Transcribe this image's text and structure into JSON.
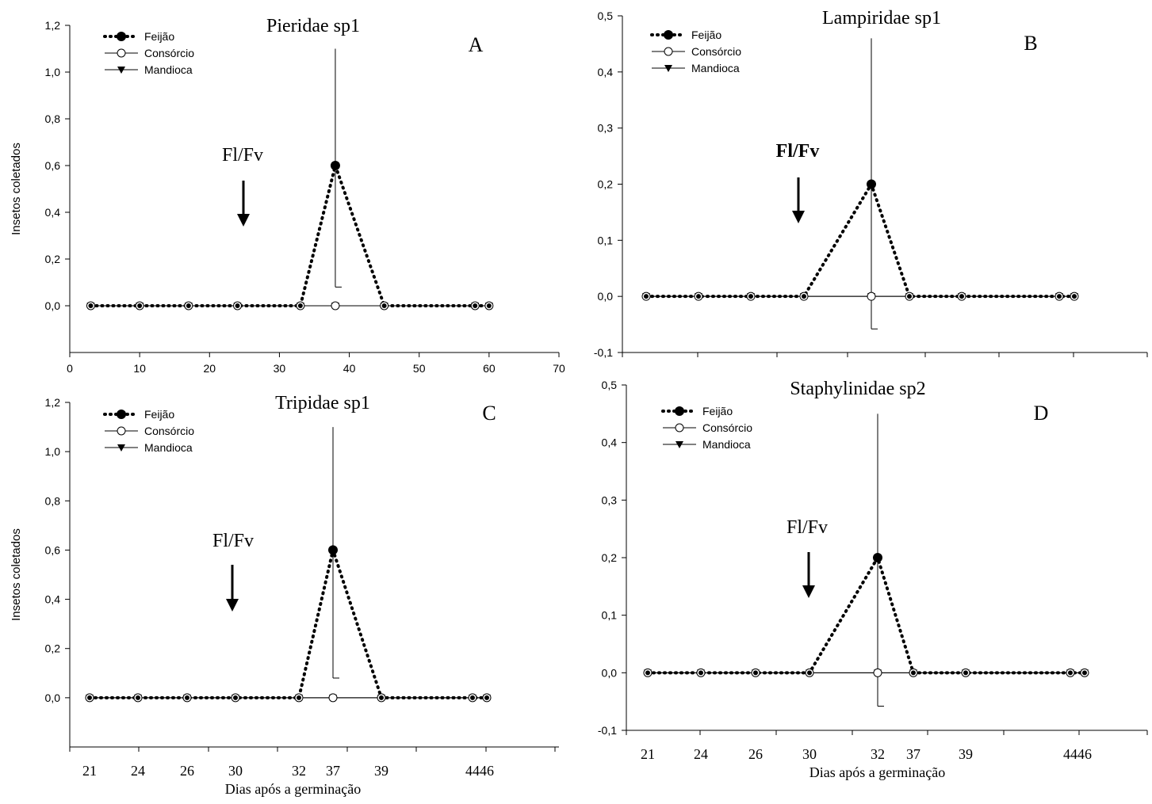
{
  "chart_data": [
    {
      "panel": "A",
      "type": "line",
      "title": "Pieridae sp1",
      "ylabel": "Insetos coletados",
      "xlabel": "",
      "x_scale": "linear",
      "xlim": [
        0,
        70
      ],
      "ylim": [
        -0.2,
        1.2
      ],
      "x_ticks": [
        0,
        10,
        20,
        30,
        40,
        50,
        60,
        70
      ],
      "x_tick_labels": [
        "0",
        "10",
        "20",
        "30",
        "40",
        "50",
        "60",
        "70"
      ],
      "y_ticks": [
        0.0,
        0.2,
        0.4,
        0.6,
        0.8,
        1.0,
        1.2
      ],
      "y_tick_labels": [
        "0,0",
        "0,2",
        "0,4",
        "0,6",
        "0,8",
        "1,0",
        "1,2"
      ],
      "x": [
        3,
        10,
        17,
        24,
        33,
        38,
        45,
        58,
        60
      ],
      "series": [
        {
          "name": "Feijão",
          "values": [
            0,
            0,
            0,
            0,
            0,
            0.6,
            0,
            0,
            0
          ],
          "style": "dotted",
          "marker": "filled-circle"
        },
        {
          "name": "Consórcio",
          "values": [
            0,
            0,
            0,
            0,
            0,
            0,
            0,
            0,
            0
          ],
          "style": "solid",
          "marker": "open-circle"
        },
        {
          "name": "Mandioca",
          "values": [
            0,
            0,
            0,
            0,
            0,
            0,
            0,
            0,
            0
          ],
          "style": "solid",
          "marker": "filled-triangle-down"
        }
      ],
      "error_bar": {
        "x": 38,
        "low": 0.08,
        "high": 1.1
      },
      "annotation": {
        "text": "Fl/Fv",
        "x": 25,
        "bold": false
      },
      "legend_position": "top-left"
    },
    {
      "panel": "B",
      "type": "line",
      "title": "Lampiridae sp1",
      "ylabel": "",
      "xlabel": "",
      "x_scale": "category",
      "categories": [
        "21",
        "24",
        "26",
        "30",
        "32",
        "37",
        "39",
        "44",
        "46"
      ],
      "ylim": [
        -0.1,
        0.5
      ],
      "y_ticks": [
        -0.1,
        0.0,
        0.1,
        0.2,
        0.3,
        0.4,
        0.5
      ],
      "y_tick_labels": [
        "-0,1",
        "0,0",
        "0,1",
        "0,2",
        "0,3",
        "0,4",
        "0,5"
      ],
      "series": [
        {
          "name": "Feijão",
          "values": [
            0,
            0,
            0,
            0,
            0.2,
            0,
            0,
            0,
            0
          ],
          "style": "dotted",
          "marker": "filled-circle"
        },
        {
          "name": "Consórcio",
          "values": [
            0,
            0,
            0,
            0,
            0,
            0,
            0,
            0,
            0
          ],
          "style": "solid",
          "marker": "open-circle"
        },
        {
          "name": "Mandioca",
          "values": [
            0,
            0,
            0,
            0,
            0,
            0,
            0,
            0,
            0
          ],
          "style": "solid",
          "marker": "filled-triangle-down"
        }
      ],
      "error_bar": {
        "category": "32",
        "low": -0.058,
        "high": 0.46
      },
      "annotation": {
        "text": "Fl/Fv",
        "bold": true
      },
      "legend_position": "top-left"
    },
    {
      "panel": "C",
      "type": "line",
      "title": "Tripidae sp1",
      "ylabel": "Insetos coletados",
      "xlabel": "Dias após a germinação",
      "x_scale": "category",
      "categories": [
        "21",
        "24",
        "26",
        "30",
        "32",
        "37",
        "39",
        "44",
        "46"
      ],
      "ylim": [
        -0.2,
        1.2
      ],
      "y_ticks": [
        0.0,
        0.2,
        0.4,
        0.6,
        0.8,
        1.0,
        1.2
      ],
      "y_tick_labels": [
        "0,0",
        "0,2",
        "0,4",
        "0,6",
        "0,8",
        "1,0",
        "1,2"
      ],
      "series": [
        {
          "name": "Feijão",
          "values": [
            0,
            0,
            0,
            0,
            0,
            0.6,
            0,
            0,
            0
          ],
          "style": "dotted",
          "marker": "filled-circle"
        },
        {
          "name": "Consórcio",
          "values": [
            0,
            0,
            0,
            0,
            0,
            0,
            0,
            0,
            0
          ],
          "style": "solid",
          "marker": "open-circle"
        },
        {
          "name": "Mandioca",
          "values": [
            0,
            0,
            0,
            0,
            0,
            0,
            0,
            0,
            0
          ],
          "style": "solid",
          "marker": "filled-triangle-down"
        }
      ],
      "error_bar": {
        "category": "37",
        "low": 0.08,
        "high": 1.1
      },
      "annotation": {
        "text": "Fl/Fv",
        "bold": false
      },
      "legend_position": "top-left"
    },
    {
      "panel": "D",
      "type": "line",
      "title": "Staphylinidae sp2",
      "ylabel": "",
      "xlabel": "Dias após a germinação",
      "x_scale": "category",
      "categories": [
        "21",
        "24",
        "26",
        "30",
        "32",
        "37",
        "39",
        "44",
        "46"
      ],
      "ylim": [
        -0.1,
        0.5
      ],
      "y_ticks": [
        -0.1,
        0.0,
        0.1,
        0.2,
        0.3,
        0.4,
        0.5
      ],
      "y_tick_labels": [
        "-0,1",
        "0,0",
        "0,1",
        "0,2",
        "0,3",
        "0,4",
        "0,5"
      ],
      "series": [
        {
          "name": "Feijão",
          "values": [
            0,
            0,
            0,
            0,
            0.2,
            0,
            0,
            0,
            0
          ],
          "style": "dotted",
          "marker": "filled-circle"
        },
        {
          "name": "Consórcio",
          "values": [
            0,
            0,
            0,
            0,
            0,
            0,
            0,
            0,
            0
          ],
          "style": "solid",
          "marker": "open-circle"
        },
        {
          "name": "Mandioca",
          "values": [
            0,
            0,
            0,
            0,
            0,
            0,
            0,
            0,
            0
          ],
          "style": "solid",
          "marker": "filled-triangle-down"
        }
      ],
      "error_bar": {
        "category": "32",
        "low": -0.058,
        "high": 0.45
      },
      "annotation": {
        "text": "Fl/Fv",
        "bold": false
      },
      "legend_position": "top-left"
    }
  ],
  "colors": {
    "line": "#000000",
    "background": "#ffffff"
  }
}
